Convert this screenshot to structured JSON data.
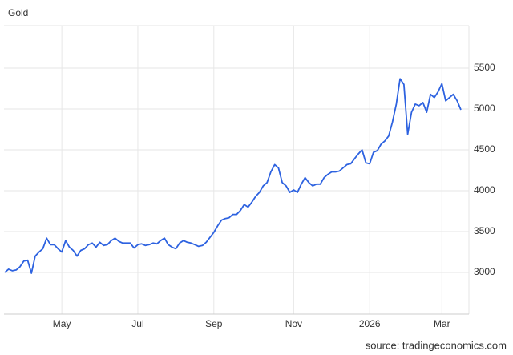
{
  "chart_data": {
    "type": "line",
    "title": "Gold",
    "source": "source: tradingeconomics.com",
    "categories": [
      null,
      null,
      null,
      null,
      null,
      null,
      null,
      null,
      null,
      null,
      null,
      null,
      null,
      null,
      null,
      "May",
      null,
      null,
      null,
      null,
      null,
      null,
      null,
      null,
      null,
      null,
      null,
      null,
      null,
      null,
      null,
      null,
      null,
      null,
      null,
      "Jul",
      null,
      null,
      null,
      null,
      null,
      null,
      null,
      null,
      null,
      null,
      null,
      null,
      null,
      null,
      null,
      null,
      null,
      null,
      null,
      "Sep",
      null,
      null,
      null,
      null,
      null,
      null,
      null,
      null,
      null,
      null,
      null,
      null,
      null,
      null,
      null,
      null,
      null,
      null,
      null,
      null,
      "Nov",
      null,
      null,
      null,
      null,
      null,
      null,
      null,
      null,
      null,
      null,
      null,
      null,
      null,
      null,
      null,
      null,
      null,
      null,
      null,
      "2026",
      null,
      null,
      null,
      null,
      null,
      null,
      null,
      null,
      null,
      null,
      null,
      null,
      null,
      null,
      null,
      null,
      null,
      null,
      "Mar",
      null,
      null,
      null,
      null,
      null
    ],
    "series": [
      {
        "name": "Gold",
        "color": "#2d62e0",
        "values": [
          3000,
          3040,
          3020,
          3030,
          3070,
          3140,
          3150,
          2990,
          3200,
          3250,
          3290,
          3420,
          3340,
          3340,
          3290,
          3250,
          3390,
          3310,
          3270,
          3200,
          3270,
          3290,
          3340,
          3360,
          3310,
          3370,
          3330,
          3340,
          3390,
          3420,
          3380,
          3360,
          3360,
          3360,
          3300,
          3340,
          3350,
          3330,
          3340,
          3360,
          3350,
          3390,
          3420,
          3340,
          3310,
          3290,
          3360,
          3390,
          3370,
          3360,
          3340,
          3320,
          3330,
          3370,
          3430,
          3490,
          3570,
          3640,
          3660,
          3670,
          3710,
          3710,
          3760,
          3830,
          3800,
          3860,
          3930,
          3980,
          4060,
          4100,
          4230,
          4320,
          4280,
          4100,
          4060,
          3980,
          4010,
          3980,
          4080,
          4160,
          4100,
          4060,
          4080,
          4080,
          4160,
          4200,
          4230,
          4230,
          4240,
          4280,
          4320,
          4330,
          4390,
          4450,
          4500,
          4340,
          4330,
          4470,
          4490,
          4570,
          4610,
          4670,
          4840,
          5060,
          5370,
          5300,
          4690,
          4960,
          5060,
          5040,
          5080,
          4960,
          5180,
          5140,
          5210,
          5310,
          5100,
          5140,
          5180,
          5100,
          4990
        ]
      }
    ],
    "ylim": [
      2490,
      6020
    ],
    "yticks": [
      3000,
      3500,
      4000,
      4500,
      5000,
      5500
    ],
    "grid": true
  }
}
